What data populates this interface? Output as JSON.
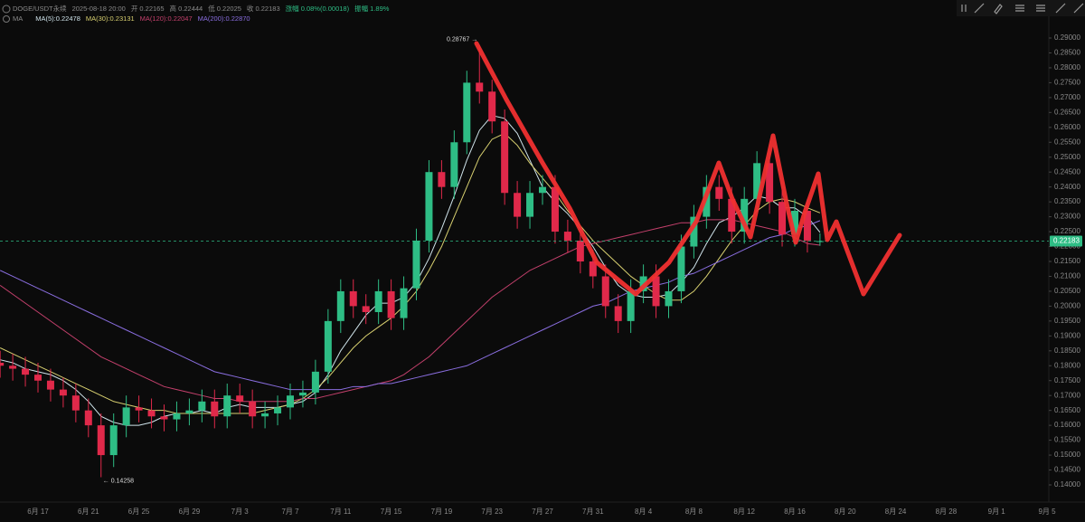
{
  "chart_data": {
    "type": "candlestick",
    "header": [
      "DOGE/USDT永续",
      "2025-08-18 20:00",
      "开 0.22165",
      "高 0.22444",
      "低 0.22025",
      "收 0.22183",
      "涨幅 0.08%(0.00018)",
      "振幅 1.89%"
    ],
    "indicator_label": "MA",
    "categories": [
      null,
      null,
      null,
      "6月 17",
      null,
      null,
      null,
      "6月 21",
      null,
      null,
      null,
      "6月 25",
      null,
      null,
      null,
      "6月 29",
      null,
      null,
      null,
      "7月 3",
      null,
      null,
      null,
      "7月 7",
      null,
      null,
      null,
      "7月 11",
      null,
      null,
      null,
      "7月 15",
      null,
      null,
      null,
      "7月 19",
      null,
      null,
      null,
      "7月 23",
      null,
      null,
      null,
      "7月 27",
      null,
      null,
      null,
      "7月 31",
      null,
      null,
      null,
      "8月 4",
      null,
      null,
      null,
      "8月 8",
      null,
      null,
      null,
      "8月 12",
      null,
      null,
      null,
      "8月 16",
      null,
      null,
      null,
      "8月 20",
      null,
      null,
      null,
      "8月 24",
      null,
      null,
      null,
      "8月 28",
      null,
      null,
      null,
      "9月 1",
      null,
      null,
      null,
      "9月 5"
    ],
    "open": [
      0.181,
      0.18,
      0.179,
      0.177,
      0.175,
      0.172,
      0.17,
      0.165,
      0.16,
      0.15,
      0.16,
      0.166,
      0.165,
      0.163,
      0.162,
      0.164,
      0.165,
      0.168,
      0.163,
      0.17,
      0.168,
      0.163,
      0.164,
      0.166,
      0.17,
      0.171,
      0.178,
      0.195,
      0.205,
      0.2,
      0.198,
      0.205,
      0.196,
      0.206,
      0.222,
      0.245,
      0.24,
      0.255,
      0.275,
      0.272,
      0.262,
      0.238,
      0.23,
      0.238,
      0.24,
      0.225,
      0.222,
      0.215,
      0.21,
      0.2,
      0.195,
      0.205,
      0.21,
      0.2,
      0.205,
      0.22,
      0.23,
      0.24,
      0.236,
      0.225,
      0.236,
      0.248,
      0.235,
      0.224,
      0.232,
      0.22165,
      null,
      null,
      null,
      null,
      null,
      null,
      null,
      null,
      null,
      null,
      null,
      null,
      null,
      null,
      null,
      null,
      null,
      null
    ],
    "high": [
      0.185,
      0.184,
      0.183,
      0.181,
      0.179,
      0.176,
      0.174,
      0.169,
      0.164,
      0.164,
      0.17,
      0.17,
      0.169,
      0.167,
      0.168,
      0.169,
      0.172,
      0.172,
      0.174,
      0.174,
      0.172,
      0.168,
      0.17,
      0.174,
      0.175,
      0.182,
      0.199,
      0.209,
      0.209,
      0.204,
      0.209,
      0.209,
      0.21,
      0.226,
      0.249,
      0.249,
      0.259,
      0.279,
      0.28767,
      0.276,
      0.266,
      0.242,
      0.242,
      0.244,
      0.244,
      0.229,
      0.226,
      0.219,
      0.214,
      0.204,
      0.209,
      0.214,
      0.214,
      0.209,
      0.224,
      0.234,
      0.244,
      0.244,
      0.24,
      0.24,
      0.252,
      0.252,
      0.239,
      0.236,
      0.236,
      0.22444,
      null,
      null,
      null,
      null,
      null,
      null,
      null,
      null,
      null,
      null,
      null,
      null,
      null,
      null,
      null,
      null,
      null,
      null
    ],
    "low": [
      0.176,
      0.175,
      0.173,
      0.171,
      0.168,
      0.166,
      0.161,
      0.156,
      0.14258,
      0.146,
      0.156,
      0.161,
      0.159,
      0.158,
      0.158,
      0.16,
      0.161,
      0.159,
      0.159,
      0.164,
      0.159,
      0.159,
      0.16,
      0.162,
      0.166,
      0.167,
      0.174,
      0.191,
      0.196,
      0.194,
      0.194,
      0.192,
      0.192,
      0.202,
      0.218,
      0.236,
      0.236,
      0.251,
      0.268,
      0.258,
      0.234,
      0.226,
      0.226,
      0.234,
      0.221,
      0.218,
      0.211,
      0.206,
      0.196,
      0.191,
      0.191,
      0.201,
      0.196,
      0.196,
      0.201,
      0.216,
      0.226,
      0.232,
      0.221,
      0.221,
      0.232,
      0.231,
      0.22,
      0.22,
      0.218,
      0.22025,
      null,
      null,
      null,
      null,
      null,
      null,
      null,
      null,
      null,
      null,
      null,
      null,
      null,
      null,
      null,
      null,
      null,
      null
    ],
    "close": [
      0.18,
      0.179,
      0.177,
      0.175,
      0.172,
      0.17,
      0.165,
      0.16,
      0.15,
      0.16,
      0.166,
      0.165,
      0.163,
      0.162,
      0.164,
      0.165,
      0.168,
      0.163,
      0.17,
      0.168,
      0.163,
      0.164,
      0.166,
      0.17,
      0.171,
      0.178,
      0.195,
      0.205,
      0.2,
      0.198,
      0.205,
      0.196,
      0.206,
      0.222,
      0.245,
      0.24,
      0.255,
      0.275,
      0.272,
      0.262,
      0.238,
      0.23,
      0.238,
      0.24,
      0.225,
      0.222,
      0.215,
      0.21,
      0.2,
      0.195,
      0.205,
      0.21,
      0.2,
      0.205,
      0.22,
      0.23,
      0.24,
      0.236,
      0.225,
      0.236,
      0.248,
      0.235,
      0.224,
      0.232,
      0.222,
      0.22183,
      null,
      null,
      null,
      null,
      null,
      null,
      null,
      null,
      null,
      null,
      null,
      null,
      null,
      null,
      null,
      null,
      null,
      null
    ],
    "up_color": "#2ebd85",
    "down_color": "#e0294a",
    "series": [
      {
        "name": "MA(5):0.22478",
        "color": "#cfe3ea",
        "values": [
          0.182,
          0.181,
          0.179,
          0.178,
          0.177,
          0.175,
          0.172,
          0.168,
          0.163,
          0.161,
          0.16,
          0.16,
          0.161,
          0.163,
          0.164,
          0.164,
          0.165,
          0.164,
          0.166,
          0.167,
          0.166,
          0.166,
          0.166,
          0.167,
          0.168,
          0.171,
          0.177,
          0.185,
          0.191,
          0.197,
          0.201,
          0.201,
          0.203,
          0.208,
          0.216,
          0.226,
          0.237,
          0.249,
          0.259,
          0.264,
          0.263,
          0.258,
          0.249,
          0.24,
          0.235,
          0.231,
          0.226,
          0.22,
          0.213,
          0.207,
          0.204,
          0.203,
          0.203,
          0.204,
          0.208,
          0.213,
          0.221,
          0.228,
          0.23,
          0.233,
          0.237,
          0.236,
          0.233,
          0.233,
          0.23,
          0.22478,
          null,
          null,
          null,
          null,
          null,
          null,
          null,
          null,
          null,
          null,
          null,
          null,
          null,
          null,
          null,
          null,
          null,
          null
        ]
      },
      {
        "name": "MA(30):0.23131",
        "color": "#d8d070",
        "values": [
          0.186,
          0.184,
          0.182,
          0.18,
          0.178,
          0.176,
          0.174,
          0.172,
          0.17,
          0.168,
          0.167,
          0.166,
          0.165,
          0.165,
          0.164,
          0.164,
          0.164,
          0.164,
          0.164,
          0.164,
          0.164,
          0.165,
          0.166,
          0.167,
          0.169,
          0.172,
          0.176,
          0.181,
          0.186,
          0.19,
          0.193,
          0.196,
          0.2,
          0.205,
          0.212,
          0.22,
          0.23,
          0.24,
          0.25,
          0.256,
          0.258,
          0.254,
          0.248,
          0.243,
          0.238,
          0.232,
          0.227,
          0.222,
          0.218,
          0.214,
          0.21,
          0.207,
          0.204,
          0.202,
          0.202,
          0.205,
          0.21,
          0.216,
          0.222,
          0.227,
          0.232,
          0.235,
          0.236,
          0.235,
          0.233,
          0.23131,
          null,
          null,
          null,
          null,
          null,
          null,
          null,
          null,
          null,
          null,
          null,
          null,
          null,
          null,
          null,
          null,
          null,
          null
        ]
      },
      {
        "name": "MA(120):0.22047",
        "color": "#c4406c",
        "values": [
          0.207,
          0.204,
          0.201,
          0.198,
          0.195,
          0.192,
          0.189,
          0.186,
          0.183,
          0.181,
          0.179,
          0.177,
          0.175,
          0.173,
          0.172,
          0.171,
          0.17,
          0.169,
          0.169,
          0.168,
          0.168,
          0.168,
          0.168,
          0.168,
          0.169,
          0.169,
          0.17,
          0.171,
          0.172,
          0.173,
          0.174,
          0.175,
          0.177,
          0.18,
          0.183,
          0.187,
          0.191,
          0.195,
          0.199,
          0.203,
          0.206,
          0.209,
          0.212,
          0.214,
          0.216,
          0.218,
          0.22,
          0.221,
          0.222,
          0.223,
          0.224,
          0.225,
          0.226,
          0.227,
          0.228,
          0.228,
          0.229,
          0.229,
          0.229,
          0.228,
          0.227,
          0.226,
          0.225,
          0.223,
          0.221,
          0.22047,
          null,
          null,
          null,
          null,
          null,
          null,
          null,
          null,
          null,
          null,
          null,
          null,
          null,
          null,
          null,
          null,
          null,
          null
        ]
      },
      {
        "name": "MA(200):0.22870",
        "color": "#8a6ee0",
        "values": [
          0.212,
          0.21,
          0.208,
          0.206,
          0.204,
          0.202,
          0.2,
          0.198,
          0.196,
          0.194,
          0.192,
          0.19,
          0.188,
          0.186,
          0.184,
          0.182,
          0.18,
          0.178,
          0.177,
          0.176,
          0.175,
          0.174,
          0.173,
          0.172,
          0.172,
          0.172,
          0.172,
          0.172,
          0.173,
          0.173,
          0.174,
          0.174,
          0.175,
          0.176,
          0.177,
          0.178,
          0.179,
          0.18,
          0.182,
          0.184,
          0.186,
          0.188,
          0.19,
          0.192,
          0.194,
          0.196,
          0.198,
          0.2,
          0.201,
          0.203,
          0.205,
          0.206,
          0.207,
          0.208,
          0.21,
          0.211,
          0.213,
          0.215,
          0.217,
          0.219,
          0.221,
          0.223,
          0.224,
          0.226,
          0.227,
          0.2287,
          null,
          null,
          null,
          null,
          null,
          null,
          null,
          null,
          null,
          null,
          null,
          null,
          null,
          null,
          null,
          null,
          null,
          null
        ]
      }
    ],
    "annotations": [
      "0.28767 →",
      "← 0.14258"
    ],
    "last_price": 0.22183,
    "ylim": [
      0.14,
      0.29
    ],
    "yticks": [
      {
        "value": 0.14,
        "label": "0.14000"
      },
      {
        "value": 0.145,
        "label": "0.14500"
      },
      {
        "value": 0.15,
        "label": "0.15000"
      },
      {
        "value": 0.155,
        "label": "0.15500"
      },
      {
        "value": 0.16,
        "label": "0.16000"
      },
      {
        "value": 0.165,
        "label": "0.16500"
      },
      {
        "value": 0.17,
        "label": "0.17000"
      },
      {
        "value": 0.175,
        "label": "0.17500"
      },
      {
        "value": 0.18,
        "label": "0.18000"
      },
      {
        "value": 0.185,
        "label": "0.18500"
      },
      {
        "value": 0.19,
        "label": "0.19000"
      },
      {
        "value": 0.195,
        "label": "0.19500"
      },
      {
        "value": 0.2,
        "label": "0.20000"
      },
      {
        "value": 0.205,
        "label": "0.20500"
      },
      {
        "value": 0.21,
        "label": "0.21000"
      },
      {
        "value": 0.215,
        "label": "0.21500"
      },
      {
        "value": 0.22,
        "label": "0.22000"
      },
      {
        "value": 0.225,
        "label": "0.22500"
      },
      {
        "value": 0.23,
        "label": "0.23000"
      },
      {
        "value": 0.235,
        "label": "0.23500"
      },
      {
        "value": 0.24,
        "label": "0.24000"
      },
      {
        "value": 0.245,
        "label": "0.24500"
      },
      {
        "value": 0.25,
        "label": "0.25000"
      },
      {
        "value": 0.255,
        "label": "0.25500"
      },
      {
        "value": 0.26,
        "label": "0.26000"
      },
      {
        "value": 0.265,
        "label": "0.26500"
      },
      {
        "value": 0.27,
        "label": "0.27000"
      },
      {
        "value": 0.275,
        "label": "0.27500"
      },
      {
        "value": 0.28,
        "label": "0.28000"
      },
      {
        "value": 0.285,
        "label": "0.28500"
      },
      {
        "value": 0.29,
        "label": "0.29000"
      }
    ],
    "grid": false
  }
}
